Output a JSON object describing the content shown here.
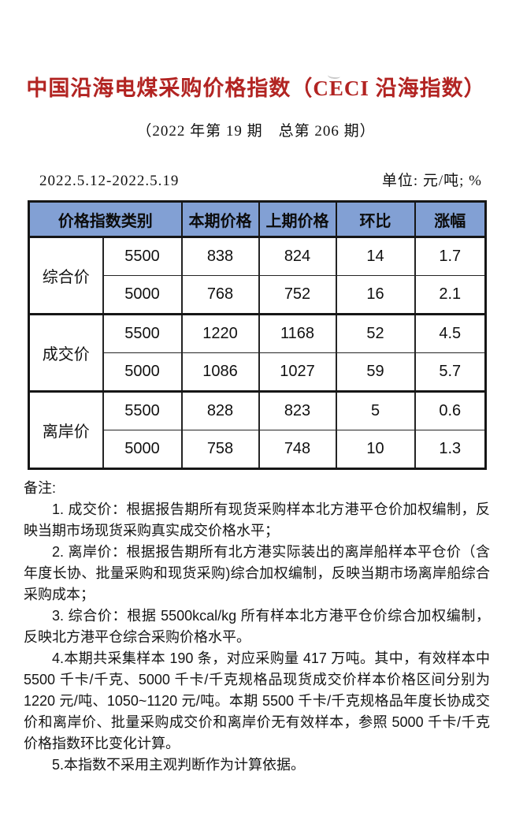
{
  "page": {
    "title": "中国沿海电煤采购价格指数（CECI 沿海指数）",
    "subtitle": "（2022 年第 19 期　总第 206 期）",
    "date_range": "2022.5.12-2022.5.19",
    "unit_label": "单位: 元/吨; %"
  },
  "colors": {
    "title_red": "#b22422",
    "value_red": "#cb2a26",
    "header_blue": "#82a0d4",
    "border_black": "#161616"
  },
  "table": {
    "headers": [
      "价格指数类别",
      "本期价格",
      "上期价格",
      "环比",
      "涨幅"
    ],
    "groups": [
      {
        "category": "综合价",
        "rows": [
          {
            "grade": "5500",
            "current": "838",
            "previous": "824",
            "change": "14",
            "pct": "1.7"
          },
          {
            "grade": "5000",
            "current": "768",
            "previous": "752",
            "change": "16",
            "pct": "2.1"
          }
        ]
      },
      {
        "category": "成交价",
        "rows": [
          {
            "grade": "5500",
            "current": "1220",
            "previous": "1168",
            "change": "52",
            "pct": "4.5"
          },
          {
            "grade": "5000",
            "current": "1086",
            "previous": "1027",
            "change": "59",
            "pct": "5.7"
          }
        ]
      },
      {
        "category": "离岸价",
        "rows": [
          {
            "grade": "5500",
            "current": "828",
            "previous": "823",
            "change": "5",
            "pct": "0.6"
          },
          {
            "grade": "5000",
            "current": "758",
            "previous": "748",
            "change": "10",
            "pct": "1.3"
          }
        ]
      }
    ]
  },
  "notes": {
    "label": "备注:",
    "items": [
      "1. 成交价：根据报告期所有现货采购样本北方港平仓价加权编制，反映当期市场现货采购真实成交价格水平；",
      "2. 离岸价：根据报告期所有北方港实际装出的离岸船样本平仓价（含年度长协、批量采购和现货采购)综合加权编制，反映当期市场离岸船综合采购成本；",
      "3. 综合价：根据 5500kcal/kg 所有样本北方港平仓价综合加权编制，反映北方港平仓综合采购价格水平。",
      "4.本期共采集样本 190 条，对应采购量 417 万吨。其中，有效样本中 5500 千卡/千克、5000 千卡/千克规格品现货成交价样本价格区间分别为 1220 元/吨、1050~1120 元/吨。本期 5500 千卡/千克规格品年度长协成交价和离岸价、批量采购成交价和离岸价无有效样本，参照 5000 千卡/千克价格指数环比变化计算。",
      "5.本指数不采用主观判断作为计算依据。"
    ]
  }
}
